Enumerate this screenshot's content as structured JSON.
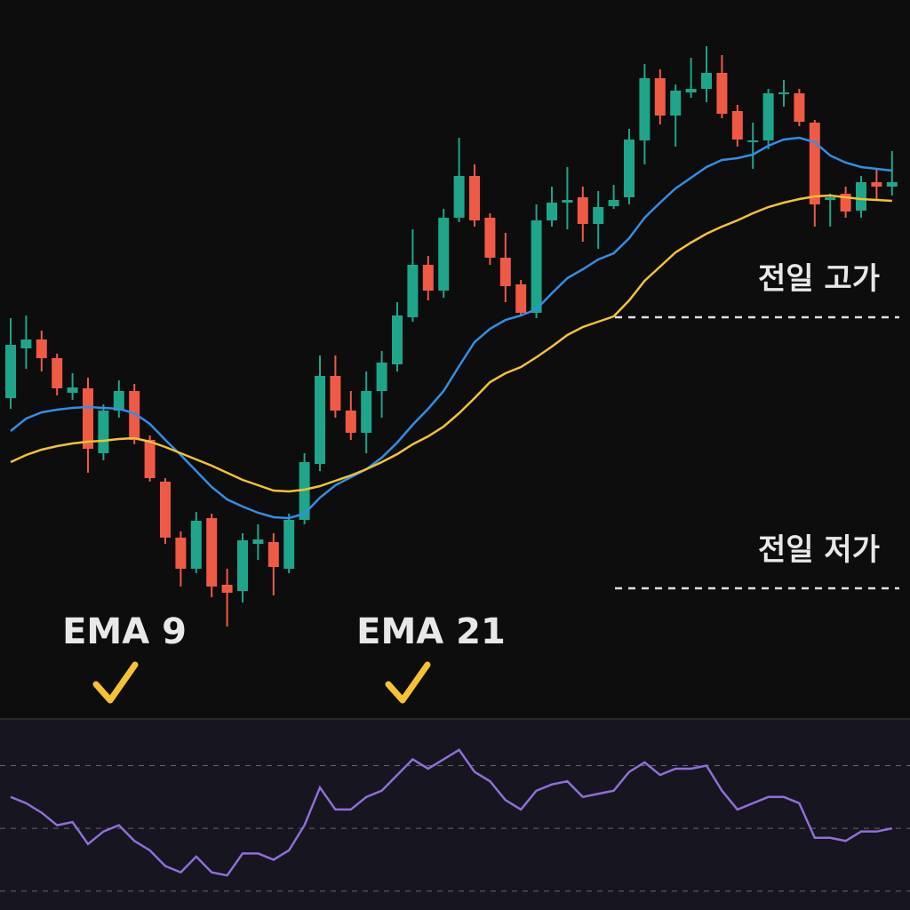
{
  "chart_data": [
    {
      "type": "candlestick",
      "ylim": [
        0,
        810
      ],
      "up_color": "#1fa58a",
      "down_color": "#ef5a45",
      "open": [
        362,
        418,
        428,
        407,
        368,
        373,
        300,
        348,
        370,
        315,
        268,
        205,
        170,
        227,
        152,
        145,
        198,
        200,
        170,
        225,
        288,
        387,
        348,
        323,
        370,
        400,
        453,
        512,
        483,
        565,
        612,
        565,
        520,
        490,
        458,
        562,
        582,
        588,
        558,
        578,
        588,
        652,
        722,
        680,
        706,
        710,
        728,
        685,
        650,
        652,
        704,
        705,
        672,
        585,
        592,
        573,
        605,
        600
      ],
      "high": [
        452,
        455,
        438,
        412,
        390,
        385,
        355,
        382,
        378,
        320,
        272,
        212,
        234,
        232,
        170,
        210,
        220,
        210,
        232,
        300,
        410,
        410,
        370,
        392,
        415,
        470,
        552,
        522,
        575,
        655,
        625,
        570,
        548,
        495,
        580,
        600,
        622,
        600,
        595,
        602,
        665,
        738,
        732,
        715,
        745,
        758,
        748,
        692,
        672,
        710,
        720,
        710,
        675,
        592,
        600,
        612,
        620,
        640
      ],
      "low": [
        350,
        395,
        392,
        365,
        360,
        278,
        292,
        340,
        310,
        268,
        198,
        150,
        165,
        138,
        105,
        132,
        180,
        140,
        165,
        220,
        280,
        340,
        315,
        300,
        340,
        392,
        448,
        472,
        475,
        560,
        555,
        512,
        470,
        455,
        452,
        555,
        552,
        538,
        530,
        575,
        580,
        625,
        670,
        645,
        700,
        695,
        677,
        645,
        620,
        642,
        690,
        668,
        555,
        555,
        565,
        565,
        585,
        590
      ],
      "close": [
        422,
        428,
        407,
        373,
        374,
        305,
        348,
        370,
        315,
        272,
        205,
        170,
        224,
        150,
        143,
        202,
        203,
        172,
        225,
        290,
        387,
        348,
        323,
        370,
        402,
        455,
        512,
        483,
        565,
        612,
        562,
        520,
        488,
        458,
        562,
        582,
        585,
        558,
        577,
        585,
        653,
        722,
        680,
        708,
        710,
        728,
        682,
        653,
        652,
        705,
        706,
        673,
        580,
        588,
        572,
        605,
        600,
        605
      ],
      "series": [
        {
          "name": "EMA 9",
          "color": "#2f8fe8",
          "values": [
            325,
            339,
            346,
            349,
            351,
            352,
            351,
            350,
            345,
            333,
            315,
            298,
            280,
            262,
            248,
            240,
            233,
            228,
            227,
            232,
            250,
            264,
            273,
            282,
            295,
            312,
            332,
            350,
            370,
            398,
            425,
            440,
            450,
            455,
            462,
            480,
            497,
            507,
            518,
            525,
            542,
            565,
            582,
            598,
            610,
            622,
            630,
            632,
            636,
            646,
            653,
            655,
            650,
            635,
            627,
            622,
            620,
            618
          ]
        },
        {
          "name": "EMA 21",
          "color": "#f5c230",
          "values": [
            290,
            298,
            304,
            308,
            311,
            313,
            314,
            316,
            317,
            313,
            307,
            300,
            293,
            286,
            278,
            270,
            264,
            258,
            257,
            259,
            263,
            269,
            275,
            282,
            290,
            299,
            310,
            319,
            330,
            345,
            362,
            380,
            390,
            397,
            408,
            420,
            433,
            442,
            448,
            454,
            472,
            494,
            510,
            526,
            537,
            547,
            555,
            562,
            570,
            577,
            582,
            586,
            589,
            590,
            588,
            586,
            585,
            584
          ]
        }
      ],
      "annotations": [
        {
          "text": "전일 고가",
          "value": 453
        },
        {
          "text": "전일 저가",
          "value": 148
        }
      ]
    },
    {
      "type": "line",
      "ylim": [
        24,
        84
      ],
      "color": "#8f6fd8",
      "levels": [
        30,
        50,
        70
      ],
      "values": [
        60,
        58,
        55,
        51,
        52,
        45,
        49,
        51,
        46,
        43,
        38,
        36,
        41,
        36,
        35,
        42,
        42,
        40,
        43,
        51,
        63,
        56,
        56,
        60,
        62,
        67,
        72,
        69,
        72,
        75,
        68,
        65,
        59,
        56,
        62,
        64,
        65,
        60,
        61,
        62,
        68,
        71,
        67,
        69,
        69,
        70,
        62,
        56,
        58,
        60,
        60,
        58,
        47,
        47,
        46,
        49,
        49,
        50
      ]
    }
  ]
}
